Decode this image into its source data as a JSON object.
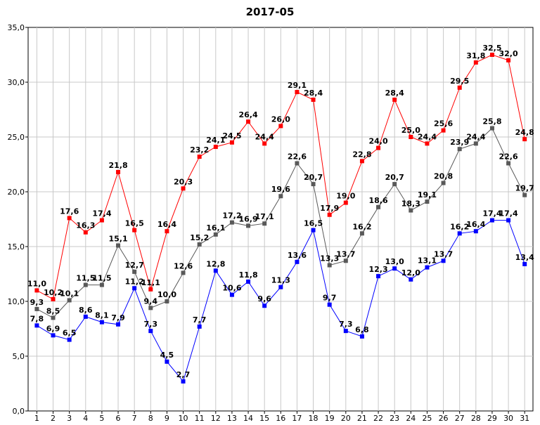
{
  "chart_data": {
    "type": "line",
    "title": "2017-05",
    "xlabel": "",
    "ylabel": "",
    "categories": [
      "1",
      "2",
      "3",
      "4",
      "5",
      "6",
      "7",
      "8",
      "9",
      "10",
      "11",
      "12",
      "13",
      "14",
      "15",
      "16",
      "17",
      "18",
      "19",
      "20",
      "21",
      "22",
      "23",
      "24",
      "25",
      "26",
      "27",
      "28",
      "29",
      "30",
      "31"
    ],
    "ylim": [
      0,
      35
    ],
    "yticks": [
      "0,0",
      "5,0",
      "10,0",
      "15,0",
      "20,0",
      "25,0",
      "30,0",
      "35,0"
    ],
    "grid": true,
    "series": [
      {
        "color": "#ff0000",
        "values": [
          11.0,
          10.2,
          17.6,
          16.3,
          17.4,
          21.8,
          16.5,
          11.1,
          16.4,
          20.3,
          23.2,
          24.1,
          24.5,
          26.4,
          24.4,
          26.0,
          29.1,
          28.4,
          17.9,
          19.0,
          22.8,
          24.0,
          28.4,
          25.0,
          24.4,
          25.6,
          29.5,
          31.8,
          32.5,
          32.0,
          24.8
        ],
        "labels": [
          "11,0",
          "10,2",
          "17,6",
          "16,3",
          "17,4",
          "21,8",
          "16,5",
          "11,1",
          "16,4",
          "20,3",
          "23,2",
          "24,1",
          "24,5",
          "26,4",
          "24,4",
          "26,0",
          "29,1",
          "28,4",
          "17,9",
          "19,0",
          "22,8",
          "24,0",
          "28,4",
          "25,0",
          "24,4",
          "25,6",
          "29,5",
          "31,8",
          "32,5",
          "32,0",
          "24,8"
        ]
      },
      {
        "color": "#595959",
        "values": [
          9.3,
          8.5,
          10.1,
          11.5,
          11.5,
          15.1,
          12.7,
          9.4,
          10.0,
          12.6,
          15.2,
          16.1,
          17.2,
          16.9,
          17.1,
          19.6,
          22.6,
          20.7,
          13.3,
          13.7,
          16.2,
          18.6,
          20.7,
          18.3,
          19.1,
          20.8,
          23.9,
          24.4,
          25.8,
          22.6,
          19.7
        ],
        "labels": [
          "9,3",
          "8,5",
          "10,1",
          "11,5",
          "11,5",
          "15,1",
          "12,7",
          "9,4",
          "10,0",
          "12,6",
          "15,2",
          "16,1",
          "17,2",
          "16,9",
          "17,1",
          "19,6",
          "22,6",
          "20,7",
          "13,3",
          "13,7",
          "16,2",
          "18,6",
          "20,7",
          "18,3",
          "19,1",
          "20,8",
          "23,9",
          "24,4",
          "25,8",
          "22,6",
          "19,7"
        ]
      },
      {
        "color": "#0000ff",
        "values": [
          7.8,
          6.9,
          6.5,
          8.6,
          8.1,
          7.9,
          11.2,
          7.3,
          4.5,
          2.7,
          7.7,
          12.8,
          10.6,
          11.8,
          9.6,
          11.3,
          13.6,
          16.5,
          9.7,
          7.3,
          6.8,
          12.3,
          13.0,
          12.0,
          13.1,
          13.7,
          16.2,
          16.4,
          17.4,
          17.4,
          13.4
        ],
        "labels": [
          "7,8",
          "6,9",
          "6,5",
          "8,6",
          "8,1",
          "7,9",
          "11,2",
          "7,3",
          "4,5",
          "2,7",
          "7,7",
          "12,8",
          "10,6",
          "11,8",
          "9,6",
          "11,3",
          "13,6",
          "16,5",
          "9,7",
          "7,3",
          "6,8",
          "12,3",
          "13,0",
          "12,0",
          "13,1",
          "13,7",
          "16,2",
          "16,4",
          "17,4",
          "17,4",
          "13,4"
        ]
      }
    ]
  }
}
